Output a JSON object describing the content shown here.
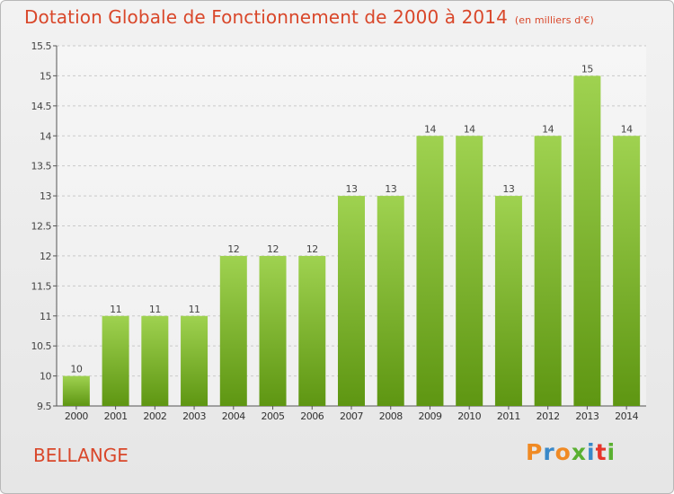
{
  "header": {
    "title": "Dotation Globale de Fonctionnement de 2000 à 2014",
    "unit": "(en milliers d'€)"
  },
  "footer": {
    "commune": "BELLANGE",
    "brand": "Proxiti"
  },
  "colors": {
    "title": "#d9472a",
    "bar_light": "#9fd250",
    "bar_dark": "#5e9612",
    "brand_letters": [
      "#f08a24",
      "#3a89c9",
      "#f08a24",
      "#5ab031",
      "#3a89c9",
      "#e6352b",
      "#5ab031"
    ]
  },
  "chart_data": {
    "type": "bar",
    "categories": [
      "2000",
      "2001",
      "2002",
      "2003",
      "2004",
      "2005",
      "2006",
      "2007",
      "2008",
      "2009",
      "2010",
      "2011",
      "2012",
      "2013",
      "2014"
    ],
    "values": [
      10,
      11,
      11,
      11,
      12,
      12,
      12,
      13,
      13,
      14,
      14,
      13,
      14,
      15,
      14
    ],
    "data_labels": [
      "10",
      "11",
      "11",
      "11",
      "12",
      "12",
      "12",
      "13",
      "13",
      "14",
      "14",
      "13",
      "14",
      "15",
      "14"
    ],
    "title": "Dotation Globale de Fonctionnement de 2000 à 2014",
    "subtitle": "(en milliers d'€)",
    "ylim": [
      9.5,
      15.5
    ],
    "yticks": [
      9.5,
      10,
      10.5,
      11,
      11.5,
      12,
      12.5,
      13,
      13.5,
      14,
      14.5,
      15,
      15.5
    ],
    "ytick_labels": [
      "9.5",
      "10",
      "10.5",
      "11",
      "11.5",
      "12",
      "12.5",
      "13",
      "13.5",
      "14",
      "14.5",
      "15",
      "15.5"
    ],
    "grid": true
  }
}
